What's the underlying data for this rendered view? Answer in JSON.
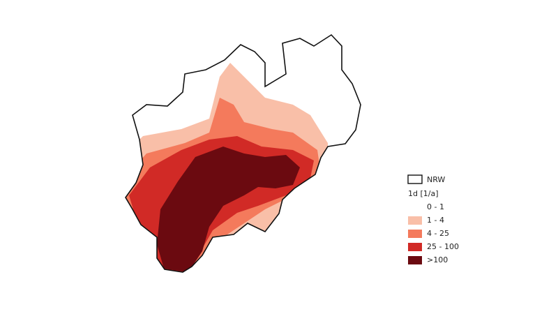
{
  "legend": {
    "boundary": "NRW",
    "title": "1d [1/a]",
    "classes": [
      {
        "label": "0 - 1",
        "color": "#ffffff"
      },
      {
        "label": "1 - 4",
        "color": "#f9bfa8"
      },
      {
        "label": "4 - 25",
        "color": "#f47a5c"
      },
      {
        "label": "25 - 100",
        "color": "#d12a26"
      },
      {
        "label": ">100",
        "color": "#6b0a10"
      }
    ]
  }
}
